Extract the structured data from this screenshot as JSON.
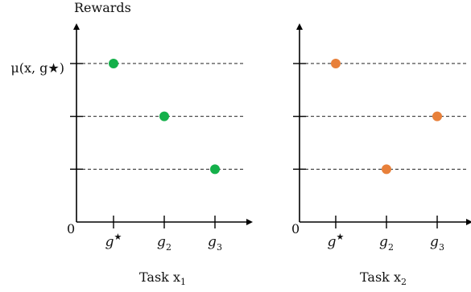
{
  "chart_data": [
    {
      "type": "scatter",
      "ylabel": "Rewards",
      "xlabel": "Task x",
      "xlabel_sub": "1",
      "origin_label": "0",
      "ytick_labels": [
        "μ(x, g★)",
        "",
        ""
      ],
      "categories": [
        {
          "base": "g",
          "sup": "★",
          "sub": ""
        },
        {
          "base": "g",
          "sup": "",
          "sub": "2"
        },
        {
          "base": "g",
          "sup": "",
          "sub": "3"
        }
      ],
      "y_levels": [
        3,
        2,
        1
      ],
      "values": [
        3,
        2,
        1
      ],
      "ylim": [
        0,
        3.7
      ],
      "grid": "dashed horizontal at ticks",
      "color": "#14b04a"
    },
    {
      "type": "scatter",
      "ylabel": "",
      "xlabel": "Task x",
      "xlabel_sub": "2",
      "origin_label": "0",
      "ytick_labels": [
        "",
        "",
        ""
      ],
      "categories": [
        {
          "base": "g",
          "sup": "★",
          "sub": ""
        },
        {
          "base": "g",
          "sup": "",
          "sub": "2"
        },
        {
          "base": "g",
          "sup": "",
          "sub": "3"
        }
      ],
      "y_levels": [
        3,
        2,
        1
      ],
      "values": [
        3,
        1,
        2
      ],
      "ylim": [
        0,
        3.7
      ],
      "grid": "dashed horizontal at ticks",
      "color": "#e8803a"
    }
  ]
}
